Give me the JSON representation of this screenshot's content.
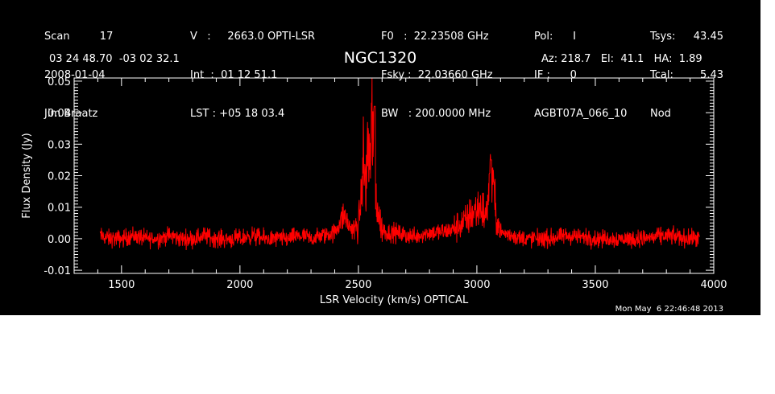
{
  "header": {
    "col1": [
      "Scan         17",
      "2008-01-04",
      "Jim Braatz"
    ],
    "col2": [
      "V   :     2663.0 OPTI-LSR",
      "Int  :  01 12 51.1",
      "LST : +05 18 03.4"
    ],
    "col3": [
      "F0   :  22.23508 GHz",
      "Fsky :  22.03660 GHz",
      "BW   : 200.0000 MHz"
    ],
    "col4": [
      "Pol:      I",
      "IF :      0",
      "AGBT07A_066_10"
    ],
    "col5a": [
      "Tsys:",
      "Tcal:",
      "Nod"
    ],
    "col5b": [
      "43.45",
      "5.43",
      ""
    ],
    "coords": "03 24 48.70  -03 02 32.1",
    "pointing": "Az: 218.7   El:  41.1   HA:  1.89"
  },
  "timestamp": "Mon May  6 22:46:48 2013",
  "colors": {
    "background": "#000000",
    "foreground": "#ffffff",
    "series": "#ff0000"
  },
  "chart_data": {
    "type": "line",
    "title": "NGC1320",
    "xlabel": "LSR Velocity (km/s) OPTICAL",
    "ylabel": "Flux Density (Jy)",
    "xlim": [
      1300,
      4000
    ],
    "ylim": [
      -0.011,
      0.051
    ],
    "xticks": [
      1500,
      2000,
      2500,
      3000,
      3500,
      4000
    ],
    "yticks": [
      -0.01,
      0.0,
      0.01,
      0.02,
      0.03,
      0.04,
      0.05
    ],
    "ytick_labels": [
      "-0.01",
      "0.00",
      "0.01",
      "0.02",
      "0.03",
      "0.04",
      "0.05"
    ],
    "grid": false,
    "series": [
      {
        "x": [
          1410,
          1450,
          1500,
          1550,
          1600,
          1650,
          1700,
          1750,
          1800,
          1850,
          1900,
          1950,
          2000,
          2050,
          2100,
          2150,
          2200,
          2250,
          2300,
          2350,
          2400,
          2420,
          2440,
          2460,
          2480,
          2500,
          2510,
          2520,
          2530,
          2540,
          2550,
          2560,
          2570,
          2580,
          2590,
          2600,
          2620,
          2650,
          2700,
          2750,
          2800,
          2850,
          2900,
          2920,
          2940,
          2960,
          2980,
          3000,
          3020,
          3040,
          3060,
          3080,
          3100,
          3150,
          3200,
          3300,
          3400,
          3500,
          3600,
          3700,
          3800,
          3900,
          3940
        ],
        "y": [
          0.001,
          0.0,
          0.0,
          0.001,
          0.0,
          0.0,
          0.001,
          0.0,
          0.0,
          0.001,
          0.0,
          0.0,
          0.0,
          0.001,
          0.0,
          0.0,
          0.0,
          0.001,
          0.0,
          0.001,
          0.002,
          0.005,
          0.008,
          0.004,
          0.003,
          0.004,
          0.012,
          0.026,
          0.015,
          0.03,
          0.021,
          0.042,
          0.018,
          0.01,
          0.006,
          0.003,
          0.002,
          0.002,
          0.001,
          0.001,
          0.002,
          0.002,
          0.003,
          0.004,
          0.005,
          0.006,
          0.008,
          0.009,
          0.01,
          0.007,
          0.025,
          0.008,
          0.002,
          0.001,
          0.0,
          0.0,
          0.001,
          0.0,
          0.0,
          0.0,
          0.001,
          0.0,
          0.0
        ]
      }
    ]
  }
}
